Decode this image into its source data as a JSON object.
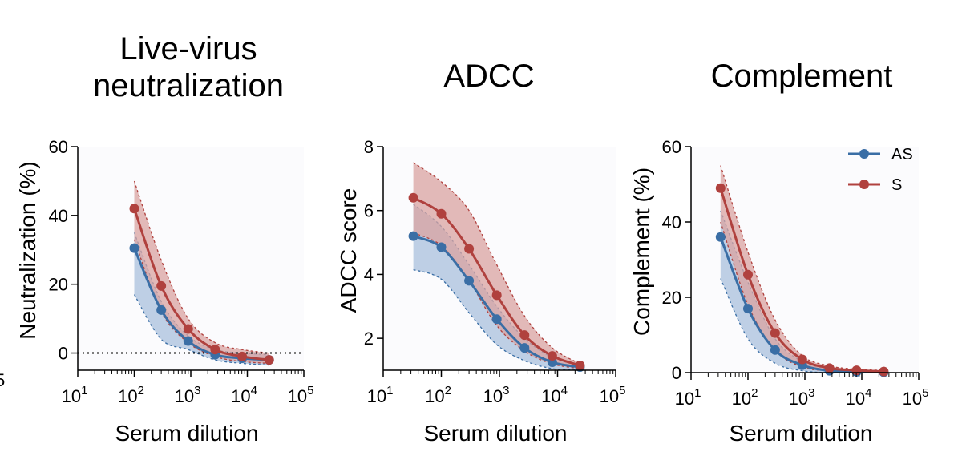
{
  "chart_data": [
    {
      "type": "line",
      "title": "Live-virus neutralization",
      "title_lines": [
        "Live-virus",
        "neutralization"
      ],
      "xlabel": "Serum dilution",
      "ylabel": "Neutralization (%)",
      "xscale": "log",
      "xlim": [
        10,
        100000
      ],
      "ylim": [
        -5,
        60
      ],
      "yticks": [
        0,
        20,
        40,
        60
      ],
      "ytick_labels": [
        "0",
        "20",
        "40",
        "60"
      ],
      "xtick_labels": [
        [
          "10",
          "1"
        ],
        [
          "10",
          "2"
        ],
        [
          "10",
          "3"
        ],
        [
          "10",
          "4"
        ],
        [
          "10",
          "5"
        ]
      ],
      "reference_line": {
        "y": 0,
        "style": "dotted"
      },
      "grid": false,
      "series": [
        {
          "key": "AS",
          "color": "#3a6ea5",
          "fill": "#a9c0dc",
          "x": [
            100,
            300,
            900,
            2700,
            8100,
            24300
          ],
          "y": [
            30.5,
            12.5,
            3.5,
            -0.5,
            -1.5,
            -2.0
          ],
          "upper": [
            35,
            15,
            5,
            1,
            0,
            -0.5
          ],
          "lower": [
            17,
            4,
            1,
            -2,
            -3,
            -3.5
          ]
        },
        {
          "key": "S",
          "color": "#b0413e",
          "fill": "#d9a3a0",
          "x": [
            100,
            300,
            900,
            2700,
            8100,
            24300
          ],
          "y": [
            42,
            19.5,
            7,
            1,
            -1,
            -2
          ],
          "upper": [
            50,
            27,
            10,
            3,
            1,
            0
          ],
          "lower": [
            33,
            12,
            3,
            -1,
            -2.5,
            -3
          ]
        }
      ]
    },
    {
      "type": "line",
      "title": "ADCC",
      "title_lines": [
        "ADCC"
      ],
      "xlabel": "Serum dilution",
      "ylabel": "ADCC score",
      "xscale": "log",
      "xlim": [
        10,
        100000
      ],
      "ylim": [
        1,
        8
      ],
      "yticks": [
        2,
        4,
        6,
        8
      ],
      "ytick_labels": [
        "2",
        "4",
        "6",
        "8"
      ],
      "xtick_labels": [
        [
          "10",
          "1"
        ],
        [
          "10",
          "2"
        ],
        [
          "10",
          "3"
        ],
        [
          "10",
          "4"
        ],
        [
          "10",
          "5"
        ]
      ],
      "grid": false,
      "series": [
        {
          "key": "AS",
          "color": "#3a6ea5",
          "fill": "#a9c0dc",
          "x": [
            33,
            100,
            300,
            900,
            2700,
            8100,
            24300
          ],
          "y": [
            5.2,
            4.85,
            3.8,
            2.6,
            1.7,
            1.25,
            1.1
          ],
          "upper": [
            6.2,
            5.5,
            4.3,
            3.0,
            2.0,
            1.4,
            1.15
          ],
          "lower": [
            4.15,
            3.85,
            2.8,
            1.8,
            1.3,
            1.05,
            1.0
          ]
        },
        {
          "key": "S",
          "color": "#b0413e",
          "fill": "#d9a3a0",
          "x": [
            33,
            100,
            300,
            900,
            2700,
            8100,
            24300
          ],
          "y": [
            6.4,
            5.9,
            4.8,
            3.35,
            2.1,
            1.45,
            1.15
          ],
          "upper": [
            7.5,
            6.9,
            6.0,
            4.3,
            2.7,
            1.7,
            1.2
          ],
          "lower": [
            5.3,
            4.9,
            3.8,
            2.4,
            1.6,
            1.2,
            1.05
          ]
        }
      ]
    },
    {
      "type": "line",
      "title": "Complement",
      "title_lines": [
        "Complement"
      ],
      "xlabel": "Serum dilution",
      "ylabel": "Complement (%)",
      "xscale": "log",
      "xlim": [
        10,
        100000
      ],
      "ylim": [
        0,
        60
      ],
      "yticks": [
        0,
        20,
        40,
        60
      ],
      "ytick_labels": [
        "0",
        "20",
        "40",
        "60"
      ],
      "xtick_labels": [
        [
          "10",
          "1"
        ],
        [
          "10",
          "2"
        ],
        [
          "10",
          "3"
        ],
        [
          "10",
          "4"
        ],
        [
          "10",
          "5"
        ]
      ],
      "grid": false,
      "legend": {
        "placement": "top-right",
        "entries": [
          "AS",
          "S"
        ]
      },
      "series": [
        {
          "key": "AS",
          "color": "#3a6ea5",
          "fill": "#a9c0dc",
          "x": [
            33,
            100,
            300,
            900,
            2700,
            8100,
            24300
          ],
          "y": [
            36,
            17,
            6,
            2,
            0.5,
            0.2,
            0.1
          ],
          "upper": [
            43,
            24,
            9,
            3,
            1,
            0.5,
            0.3
          ],
          "lower": [
            25,
            9,
            2.5,
            0.5,
            0,
            0,
            0
          ]
        },
        {
          "key": "S",
          "color": "#b0413e",
          "fill": "#d9a3a0",
          "x": [
            33,
            100,
            300,
            900,
            2700,
            8100,
            24300
          ],
          "y": [
            49,
            26,
            10.5,
            3.5,
            1.2,
            0.6,
            0.3
          ],
          "upper": [
            55,
            32,
            14,
            4.5,
            1.8,
            0.9,
            0.6
          ],
          "lower": [
            40,
            18,
            6,
            1.5,
            0.5,
            0.2,
            0.1
          ]
        }
      ]
    }
  ],
  "left_edge_fragment": "5"
}
